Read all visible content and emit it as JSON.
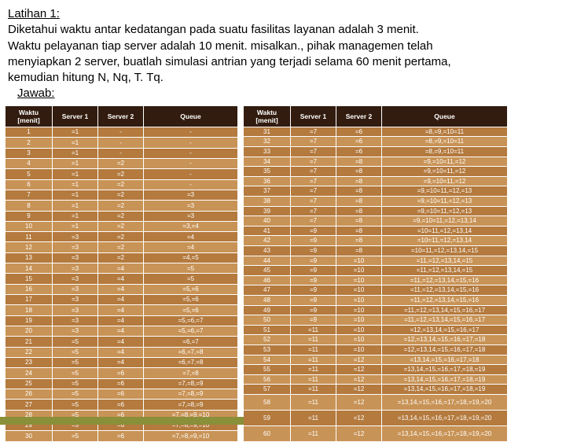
{
  "header": {
    "title": "Latihan 1:",
    "line1": "Diketahui waktu antar kedatangan pada suatu fasilitas layanan adalah 3 menit.",
    "line2": "Waktu pelayanan tiap server adalah 10 menit. misalkan., pihak managemen telah",
    "line3": "menyiapkan 2 server, buatlah simulasi antrian yang terjadi selama 60 menit pertama,",
    "line4": "kemudian hitung N, Nq, T. Tq.",
    "jawab": "Jawab:"
  },
  "columns": {
    "c1": "Waktu [menit]",
    "c2": "Server 1",
    "c3": "Server 2",
    "c4": "Queue"
  },
  "colors": {
    "header_bg": "#321c0f",
    "rowA": "#b47a3e",
    "rowB": "#c89356",
    "text": "#ffffff",
    "accent": "#8a8f3a"
  },
  "table1": [
    {
      "w": "1",
      "s1": "=1",
      "s2": "-",
      "q": "-"
    },
    {
      "w": "2",
      "s1": "=1",
      "s2": "-",
      "q": "-"
    },
    {
      "w": "3",
      "s1": "=1",
      "s2": "-",
      "q": "-"
    },
    {
      "w": "4",
      "s1": "=1",
      "s2": "=2",
      "q": "-"
    },
    {
      "w": "5",
      "s1": "=1",
      "s2": "=2",
      "q": "-"
    },
    {
      "w": "6",
      "s1": "=1",
      "s2": "=2",
      "q": "-"
    },
    {
      "w": "7",
      "s1": "=1",
      "s2": "=2",
      "q": "=3"
    },
    {
      "w": "8",
      "s1": "=1",
      "s2": "=2",
      "q": "=3"
    },
    {
      "w": "9",
      "s1": "=1",
      "s2": "=2",
      "q": "=3"
    },
    {
      "w": "10",
      "s1": "=1",
      "s2": "=2",
      "q": "=3,=4"
    },
    {
      "w": "11",
      "s1": "=3",
      "s2": "=2",
      "q": "=4"
    },
    {
      "w": "12",
      "s1": "=3",
      "s2": "=2",
      "q": "=4"
    },
    {
      "w": "13",
      "s1": "=3",
      "s2": "=2",
      "q": "=4,=5"
    },
    {
      "w": "14",
      "s1": "=3",
      "s2": "=4",
      "q": "=5"
    },
    {
      "w": "15",
      "s1": "=3",
      "s2": "=4",
      "q": "=5"
    },
    {
      "w": "16",
      "s1": "=3",
      "s2": "=4",
      "q": "=5,=6"
    },
    {
      "w": "17",
      "s1": "=3",
      "s2": "=4",
      "q": "=5,=6"
    },
    {
      "w": "18",
      "s1": "=3",
      "s2": "=4",
      "q": "=5,=6"
    },
    {
      "w": "19",
      "s1": "=3",
      "s2": "=4",
      "q": "=5,=6,=7"
    },
    {
      "w": "20",
      "s1": "=3",
      "s2": "=4",
      "q": "=5,=6,=7"
    },
    {
      "w": "21",
      "s1": "=5",
      "s2": "=4",
      "q": "=6,=7"
    },
    {
      "w": "22",
      "s1": "=5",
      "s2": "=4",
      "q": "=6,=7,=8"
    },
    {
      "w": "23",
      "s1": "=5",
      "s2": "=4",
      "q": "=6,=7,=8"
    },
    {
      "w": "24",
      "s1": "=5",
      "s2": "=6",
      "q": "=7,=8"
    },
    {
      "w": "25",
      "s1": "=5",
      "s2": "=6",
      "q": "=7,=8,=9"
    },
    {
      "w": "26",
      "s1": "=5",
      "s2": "=6",
      "q": "=7,=8,=9"
    },
    {
      "w": "27",
      "s1": "=5",
      "s2": "=6",
      "q": "=7,=8,=9"
    },
    {
      "w": "28",
      "s1": "=5",
      "s2": "=6",
      "q": "=7,=8,=9,=10"
    },
    {
      "w": "29",
      "s1": "=5",
      "s2": "=6",
      "q": "=7,=8,=9,=10"
    },
    {
      "w": "30",
      "s1": "=5",
      "s2": "=6",
      "q": "=7,=8,=9,=10"
    }
  ],
  "table2": [
    {
      "w": "31",
      "s1": "=7",
      "s2": "=6",
      "q": "=8,=9,=10=11"
    },
    {
      "w": "32",
      "s1": "=7",
      "s2": "=6",
      "q": "=8,=9,=10=11"
    },
    {
      "w": "33",
      "s1": "=7",
      "s2": "=6",
      "q": "=8,=9,=10=11"
    },
    {
      "w": "34",
      "s1": "=7",
      "s2": "=8",
      "q": "=9,=10=11,=12"
    },
    {
      "w": "35",
      "s1": "=7",
      "s2": "=8",
      "q": "=9,=10=11,=12"
    },
    {
      "w": "36",
      "s1": "=7",
      "s2": "=8",
      "q": "=9,=10=11,=12"
    },
    {
      "w": "37",
      "s1": "=7",
      "s2": "=8",
      "q": "=9,=10=11,=12,=13"
    },
    {
      "w": "38",
      "s1": "=7",
      "s2": "=8",
      "q": "=9,=10=11,=12,=13"
    },
    {
      "w": "39",
      "s1": "=7",
      "s2": "=8",
      "q": "=9,=10=11,=12,=13"
    },
    {
      "w": "40",
      "s1": "=7",
      "s2": "=8",
      "q": "=9,=10=11,=12,=13,14"
    },
    {
      "w": "41",
      "s1": "=9",
      "s2": "=8",
      "q": "=10=11,=12,=13,14"
    },
    {
      "w": "42",
      "s1": "=9",
      "s2": "=8",
      "q": "=10=11,=12,=13,14"
    },
    {
      "w": "43",
      "s1": "=9",
      "s2": "=8",
      "q": "=10=11,=12,=13,14,=15"
    },
    {
      "w": "44",
      "s1": "=9",
      "s2": "=10",
      "q": "=11,=12,=13,14,=15"
    },
    {
      "w": "45",
      "s1": "=9",
      "s2": "=10",
      "q": "=11,=12,=13,14,=15"
    },
    {
      "w": "46",
      "s1": "=9",
      "s2": "=10",
      "q": "=11,=12,=13,14,=15,=16"
    },
    {
      "w": "47",
      "s1": "=9",
      "s2": "=10",
      "q": "=11,=12,=13,14,=15,=16"
    },
    {
      "w": "48",
      "s1": "=9",
      "s2": "=10",
      "q": "=11,=12,=13,14,=15,=16"
    },
    {
      "w": "49",
      "s1": "=9",
      "s2": "=10",
      "q": "=11,=12,=13,14,=15,=16,=17"
    },
    {
      "w": "50",
      "s1": "=9",
      "s2": "=10",
      "q": "=11,=12,=13,14,=15,=16,=17"
    },
    {
      "w": "51",
      "s1": "=11",
      "s2": "=10",
      "q": "=12,=13,14,=15,=16,=17"
    },
    {
      "w": "52",
      "s1": "=11",
      "s2": "=10",
      "q": "=12,=13,14,=15,=16,=17,=18"
    },
    {
      "w": "53",
      "s1": "=11",
      "s2": "=10",
      "q": "=12,=13,14,=15,=16,=17,=18"
    },
    {
      "w": "54",
      "s1": "=11",
      "s2": "=12",
      "q": "=13,14,=15,=16,=17,=18"
    },
    {
      "w": "55",
      "s1": "=11",
      "s2": "=12",
      "q": "=13,14,=15,=16,=17,=18,=19"
    },
    {
      "w": "56",
      "s1": "=11",
      "s2": "=12",
      "q": "=13,14,=15,=16,=17,=18,=19"
    },
    {
      "w": "57",
      "s1": "=11",
      "s2": "=12",
      "q": "=13,14,=15,=16,=17,=18,=19"
    },
    {
      "w": "58",
      "s1": "=11",
      "s2": "=12",
      "q": "=13,14,=15,=16,=17,=18,=19,=20"
    },
    {
      "w": "59",
      "s1": "=11",
      "s2": "=12",
      "q": "=13,14,=15,=16,=17,=18,=19,=20"
    },
    {
      "w": "60",
      "s1": "=11",
      "s2": "=12",
      "q": "=13,14,=15,=16,=17,=18,=19,=20"
    }
  ]
}
